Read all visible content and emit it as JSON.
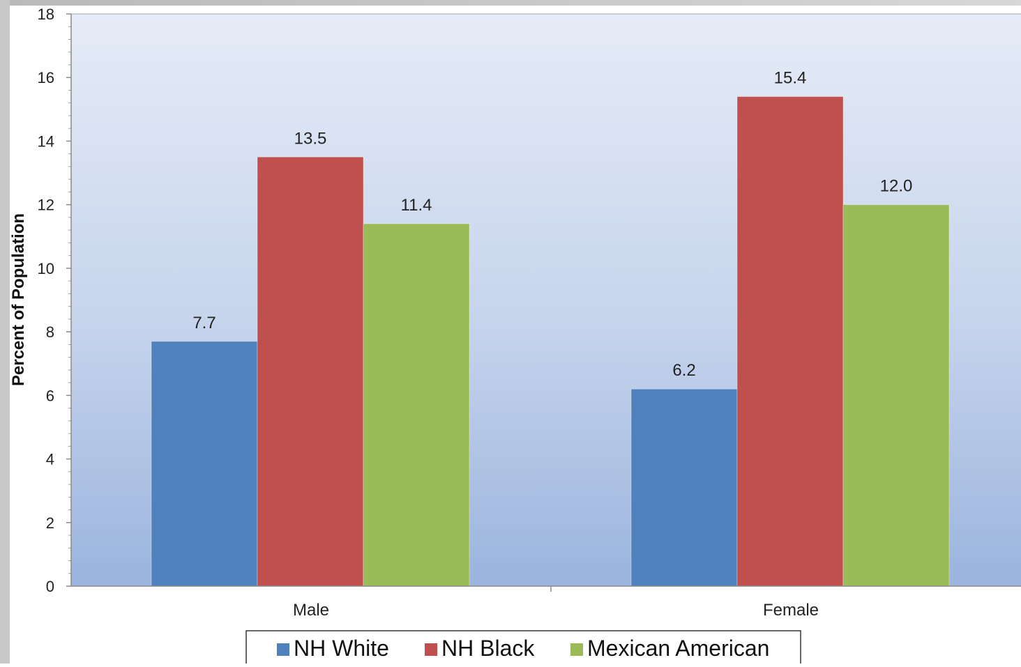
{
  "chart_data": {
    "type": "bar",
    "title": "",
    "xlabel": "",
    "ylabel": "Percent of Population",
    "ylim": [
      0,
      18
    ],
    "yticks": [
      0,
      2,
      4,
      6,
      8,
      10,
      12,
      14,
      16,
      18
    ],
    "categories": [
      "Male",
      "Female"
    ],
    "series": [
      {
        "name": "NH White",
        "color": "#4f81bd",
        "values": [
          7.7,
          6.2
        ],
        "labels": [
          "7.7",
          "6.2"
        ]
      },
      {
        "name": "NH Black",
        "color": "#c0504d",
        "values": [
          13.5,
          15.4
        ],
        "labels": [
          "13.5",
          "15.4"
        ]
      },
      {
        "name": "Mexican American",
        "color": "#9bbb59",
        "values": [
          11.4,
          12.0
        ],
        "labels": [
          "11.4",
          "12.0"
        ]
      }
    ],
    "grid": false,
    "legend_position": "bottom",
    "plot_background": "light blue gradient"
  }
}
